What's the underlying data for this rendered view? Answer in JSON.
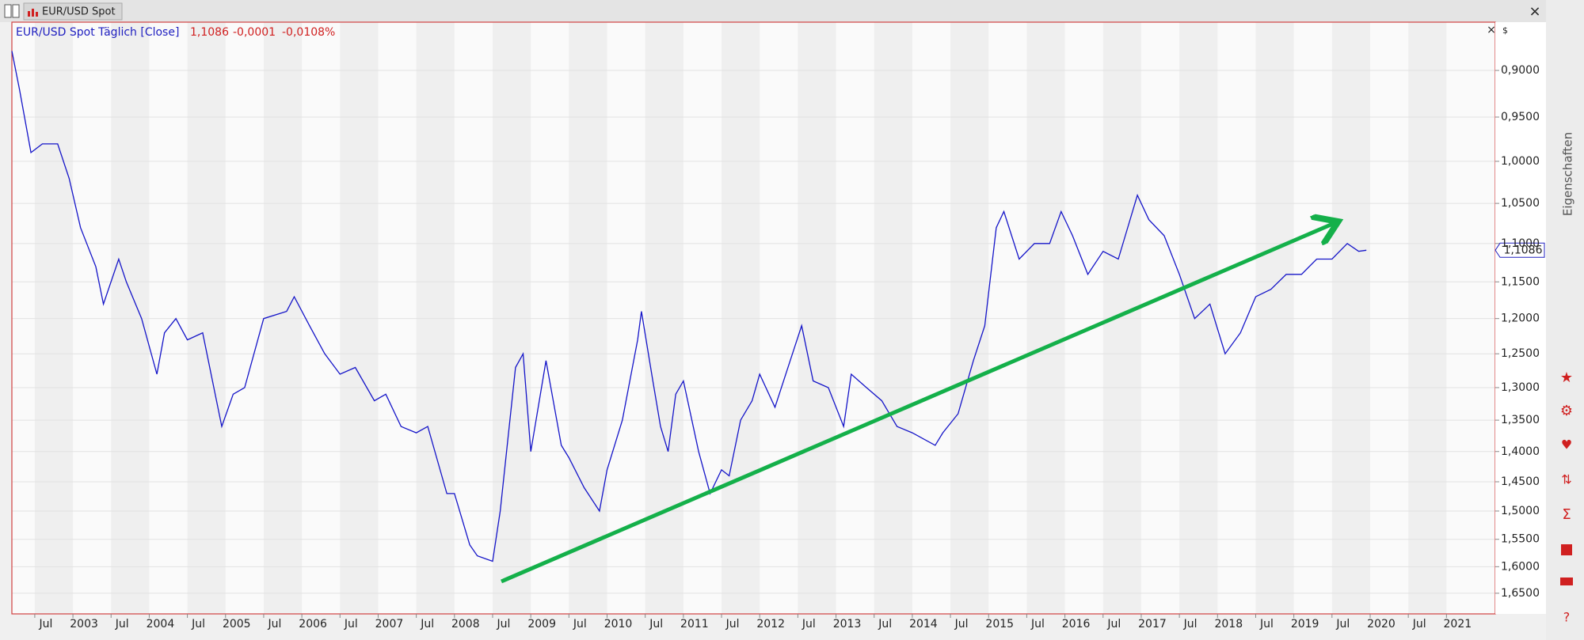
{
  "header": {
    "tab": "EUR/USD Spot",
    "legend_name": "EUR/USD Spot  Täglich [Close]",
    "last": "1,1086",
    "change": "-0,0001",
    "change_pct": "-0,0108%",
    "side_panel": "Eigenschaften",
    "currency": "$"
  },
  "chart_data": {
    "type": "line",
    "log_scale": true,
    "inverted": true,
    "grid": true,
    "xlim": [
      2002.2,
      2021.64
    ],
    "ylim": [
      0.851,
      1.69
    ],
    "yticks": [
      {
        "value": 0.9,
        "label": "0,9000"
      },
      {
        "value": 0.95,
        "label": "0,9500"
      },
      {
        "value": 1.0,
        "label": "1,0000"
      },
      {
        "value": 1.05,
        "label": "1,0500"
      },
      {
        "value": 1.1,
        "label": "1,1000"
      },
      {
        "value": 1.15,
        "label": "1,1500"
      },
      {
        "value": 1.2,
        "label": "1,2000"
      },
      {
        "value": 1.25,
        "label": "1,2500"
      },
      {
        "value": 1.3,
        "label": "1,3000"
      },
      {
        "value": 1.35,
        "label": "1,3500"
      },
      {
        "value": 1.4,
        "label": "1,4000"
      },
      {
        "value": 1.45,
        "label": "1,4500"
      },
      {
        "value": 1.5,
        "label": "1,5000"
      },
      {
        "value": 1.55,
        "label": "1,5500"
      },
      {
        "value": 1.6,
        "label": "1,6000"
      },
      {
        "value": 1.65,
        "label": "1,6500"
      }
    ],
    "xticks": [
      {
        "value": 2002.5,
        "label": "Jul"
      },
      {
        "value": 2003,
        "label": "2003"
      },
      {
        "value": 2003.5,
        "label": "Jul"
      },
      {
        "value": 2004,
        "label": "2004"
      },
      {
        "value": 2004.5,
        "label": "Jul"
      },
      {
        "value": 2005,
        "label": "2005"
      },
      {
        "value": 2005.5,
        "label": "Jul"
      },
      {
        "value": 2006,
        "label": "2006"
      },
      {
        "value": 2006.5,
        "label": "Jul"
      },
      {
        "value": 2007,
        "label": "2007"
      },
      {
        "value": 2007.5,
        "label": "Jul"
      },
      {
        "value": 2008,
        "label": "2008"
      },
      {
        "value": 2008.5,
        "label": "Jul"
      },
      {
        "value": 2009,
        "label": "2009"
      },
      {
        "value": 2009.5,
        "label": "Jul"
      },
      {
        "value": 2010,
        "label": "2010"
      },
      {
        "value": 2010.5,
        "label": "Jul"
      },
      {
        "value": 2011,
        "label": "2011"
      },
      {
        "value": 2011.5,
        "label": "Jul"
      },
      {
        "value": 2012,
        "label": "2012"
      },
      {
        "value": 2012.5,
        "label": "Jul"
      },
      {
        "value": 2013,
        "label": "2013"
      },
      {
        "value": 2013.5,
        "label": "Jul"
      },
      {
        "value": 2014,
        "label": "2014"
      },
      {
        "value": 2014.5,
        "label": "Jul"
      },
      {
        "value": 2015,
        "label": "2015"
      },
      {
        "value": 2015.5,
        "label": "Jul"
      },
      {
        "value": 2016,
        "label": "2016"
      },
      {
        "value": 2016.5,
        "label": "Jul"
      },
      {
        "value": 2017,
        "label": "2017"
      },
      {
        "value": 2017.5,
        "label": "Jul"
      },
      {
        "value": 2018,
        "label": "2018"
      },
      {
        "value": 2018.5,
        "label": "Jul"
      },
      {
        "value": 2019,
        "label": "2019"
      },
      {
        "value": 2019.5,
        "label": "Jul"
      },
      {
        "value": 2020,
        "label": "2020"
      },
      {
        "value": 2020.5,
        "label": "Jul"
      },
      {
        "value": 2021,
        "label": "2021"
      }
    ],
    "series": [
      {
        "name": "EUR/USD Spot",
        "color": "#1414c8",
        "x": [
          2002.2,
          2002.3,
          2002.45,
          2002.6,
          2002.8,
          2002.95,
          2003.1,
          2003.3,
          2003.4,
          2003.6,
          2003.7,
          2003.9,
          2004.1,
          2004.2,
          2004.35,
          2004.5,
          2004.7,
          2004.95,
          2005.1,
          2005.25,
          2005.5,
          2005.8,
          2005.9,
          2006.1,
          2006.3,
          2006.5,
          2006.7,
          2006.95,
          2007.1,
          2007.3,
          2007.5,
          2007.65,
          2007.9,
          2008.0,
          2008.2,
          2008.3,
          2008.5,
          2008.6,
          2008.8,
          2008.9,
          2009.0,
          2009.2,
          2009.4,
          2009.5,
          2009.7,
          2009.9,
          2010.0,
          2010.2,
          2010.4,
          2010.45,
          2010.6,
          2010.7,
          2010.8,
          2010.9,
          2011.0,
          2011.2,
          2011.35,
          2011.5,
          2011.6,
          2011.75,
          2011.9,
          2012.0,
          2012.2,
          2012.4,
          2012.55,
          2012.7,
          2012.9,
          2013.1,
          2013.2,
          2013.4,
          2013.6,
          2013.8,
          2014.0,
          2014.3,
          2014.4,
          2014.6,
          2014.8,
          2014.95,
          2015.1,
          2015.2,
          2015.4,
          2015.6,
          2015.8,
          2015.95,
          2016.1,
          2016.3,
          2016.5,
          2016.7,
          2016.95,
          2017.1,
          2017.3,
          2017.5,
          2017.7,
          2017.9,
          2018.1,
          2018.3,
          2018.5,
          2018.7,
          2018.9,
          2019.1,
          2019.3,
          2019.5,
          2019.7,
          2019.85,
          2019.95
        ],
        "values": [
          0.88,
          0.92,
          0.99,
          0.98,
          0.98,
          1.02,
          1.08,
          1.13,
          1.18,
          1.12,
          1.15,
          1.2,
          1.28,
          1.22,
          1.2,
          1.23,
          1.22,
          1.36,
          1.31,
          1.3,
          1.2,
          1.19,
          1.17,
          1.21,
          1.25,
          1.28,
          1.27,
          1.32,
          1.31,
          1.36,
          1.37,
          1.36,
          1.47,
          1.47,
          1.56,
          1.58,
          1.59,
          1.5,
          1.27,
          1.25,
          1.4,
          1.26,
          1.39,
          1.41,
          1.46,
          1.5,
          1.43,
          1.35,
          1.23,
          1.19,
          1.29,
          1.36,
          1.4,
          1.31,
          1.29,
          1.4,
          1.47,
          1.43,
          1.44,
          1.35,
          1.32,
          1.28,
          1.33,
          1.26,
          1.21,
          1.29,
          1.3,
          1.36,
          1.28,
          1.3,
          1.32,
          1.36,
          1.37,
          1.39,
          1.37,
          1.34,
          1.26,
          1.21,
          1.08,
          1.06,
          1.12,
          1.1,
          1.1,
          1.06,
          1.09,
          1.14,
          1.11,
          1.12,
          1.04,
          1.07,
          1.09,
          1.14,
          1.2,
          1.18,
          1.25,
          1.22,
          1.17,
          1.16,
          1.14,
          1.14,
          1.12,
          1.12,
          1.1,
          1.11,
          1.1086
        ]
      }
    ]
  }
}
